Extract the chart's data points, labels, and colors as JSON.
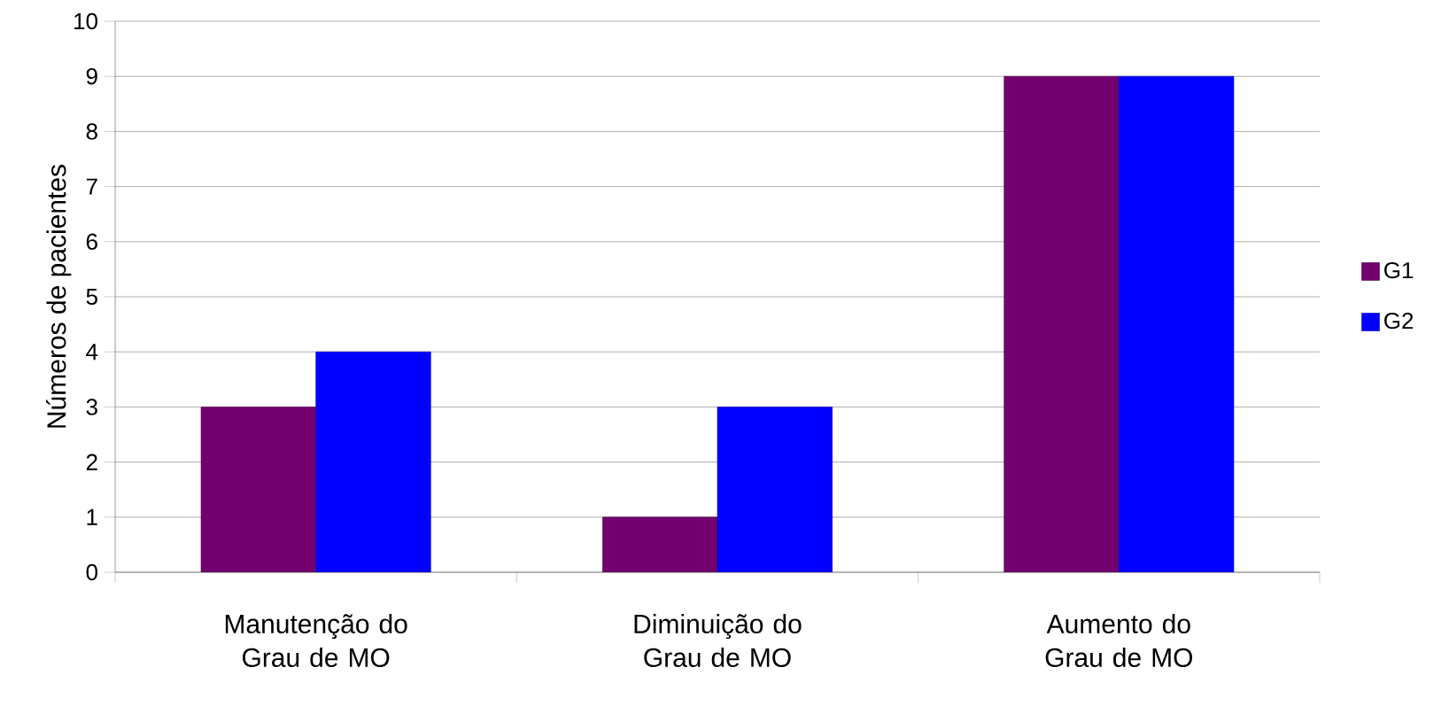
{
  "chart_data": {
    "type": "bar",
    "categories": [
      "Manutenção do Grau de MO",
      "Diminuição do Grau de MO",
      "Aumento do Grau de MO"
    ],
    "series": [
      {
        "name": "G1",
        "color": "#72006e",
        "values": [
          3,
          1,
          9
        ]
      },
      {
        "name": "G2",
        "color": "#0000ff",
        "values": [
          4,
          3,
          9
        ]
      }
    ],
    "ylabel": "Números de pacientes",
    "ylim": [
      0,
      10
    ],
    "yticks": [
      0,
      1,
      2,
      3,
      4,
      5,
      6,
      7,
      8,
      9,
      10
    ],
    "grid": "y",
    "legend": "right"
  }
}
